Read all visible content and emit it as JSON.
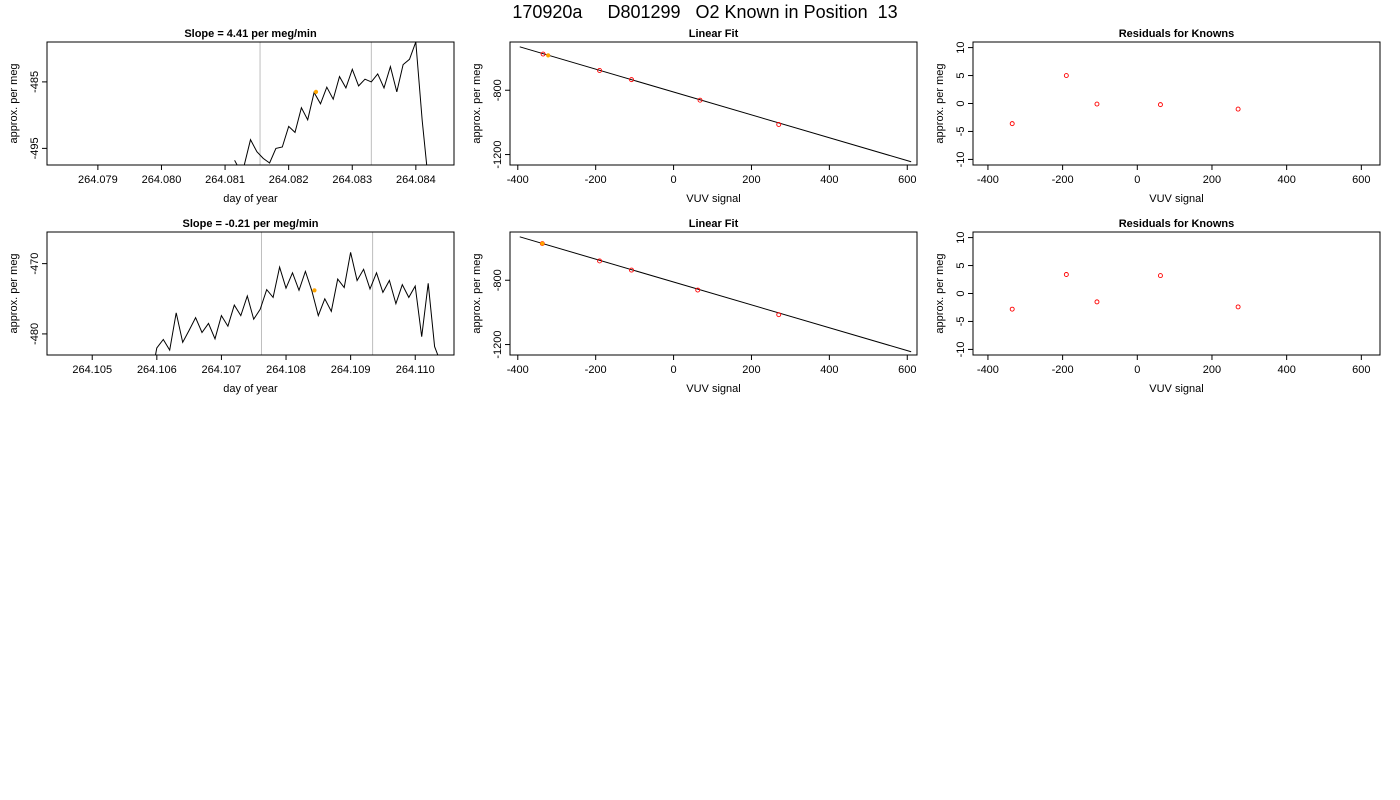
{
  "title": "170920a     D801299   O2 Known in Position  13",
  "colors": {
    "line": "#000000",
    "vline": "#bebebe",
    "point": "#ff0000",
    "highlight": "#ffa500"
  },
  "chart_data": [
    {
      "id": "row1-trace",
      "type": "line",
      "title": "Slope =  4.41  per meg/min",
      "xlabel": "day of year",
      "ylabel": "approx. per meg",
      "xlim": [
        264.0782,
        264.0846
      ],
      "ylim": [
        -497.5,
        -479
      ],
      "xticks": [
        264.079,
        264.08,
        264.081,
        264.082,
        264.083,
        264.084
      ],
      "xtick_labels": [
        "264.079",
        "264.080",
        "264.081",
        "264.082",
        "264.083",
        "264.084"
      ],
      "yticks": [
        -485,
        -495
      ],
      "ytick_labels": [
        "-485",
        "-495"
      ],
      "vlines": [
        264.08155,
        264.0833
      ],
      "highlight_point": [
        264.08243,
        -486.5
      ],
      "trace": [
        [
          264.08115,
          -496.8
        ],
        [
          264.0812,
          -497.7
        ],
        [
          264.0813,
          -497.6
        ],
        [
          264.0814,
          -493.7
        ],
        [
          264.0815,
          -495.5
        ],
        [
          264.0816,
          -496.5
        ],
        [
          264.0817,
          -497.2
        ],
        [
          264.0818,
          -495.0
        ],
        [
          264.0819,
          -494.8
        ],
        [
          264.082,
          -491.7
        ],
        [
          264.0821,
          -492.6
        ],
        [
          264.0822,
          -488.9
        ],
        [
          264.0823,
          -490.7
        ],
        [
          264.0824,
          -486.6
        ],
        [
          264.0825,
          -488.3
        ],
        [
          264.0826,
          -485.8
        ],
        [
          264.0827,
          -487.6
        ],
        [
          264.0828,
          -484.2
        ],
        [
          264.0829,
          -485.9
        ],
        [
          264.083,
          -483.1
        ],
        [
          264.0831,
          -485.6
        ],
        [
          264.0832,
          -484.6
        ],
        [
          264.0833,
          -485.0
        ],
        [
          264.0834,
          -483.8
        ],
        [
          264.0835,
          -485.9
        ],
        [
          264.0836,
          -482.7
        ],
        [
          264.0837,
          -486.5
        ],
        [
          264.0838,
          -482.4
        ],
        [
          264.0839,
          -481.6
        ],
        [
          264.084,
          -479.0
        ],
        [
          264.0841,
          -490.8
        ],
        [
          264.08417,
          -497.5
        ]
      ]
    },
    {
      "id": "row1-fit",
      "type": "scatter",
      "title": "Linear Fit",
      "xlabel": "VUV signal",
      "ylabel": "approx. per meg",
      "xlim": [
        -420,
        625
      ],
      "ylim": [
        -1265,
        -500
      ],
      "xticks": [
        -400,
        -200,
        0,
        200,
        400,
        600
      ],
      "xtick_labels": [
        "-400",
        "-200",
        "0",
        "200",
        "400",
        "600"
      ],
      "yticks": [
        -800,
        -1200
      ],
      "ytick_labels": [
        "-800",
        "-1200"
      ],
      "fit_line": [
        [
          -395,
          -530
        ],
        [
          610,
          -1245
        ]
      ],
      "points": [
        [
          -335,
          -575
        ],
        [
          -190,
          -677
        ],
        [
          -108,
          -734
        ],
        [
          68,
          -862
        ],
        [
          270,
          -1013
        ]
      ],
      "highlight_point": [
        -322,
        -583
      ]
    },
    {
      "id": "row1-residuals",
      "type": "scatter",
      "title": "Residuals for Knowns",
      "xlabel": "VUV signal",
      "ylabel": "approx. per meg",
      "xlim": [
        -440,
        650
      ],
      "ylim": [
        -11,
        11
      ],
      "xticks": [
        -400,
        -200,
        0,
        200,
        400,
        600
      ],
      "xtick_labels": [
        "-400",
        "-200",
        "0",
        "200",
        "400",
        "600"
      ],
      "yticks": [
        10,
        5,
        0,
        -5,
        -10
      ],
      "ytick_labels": [
        "10",
        "5",
        "0",
        "-5",
        "-10"
      ],
      "points": [
        [
          -335,
          -3.6
        ],
        [
          -190,
          5.0
        ],
        [
          -108,
          -0.1
        ],
        [
          62,
          -0.2
        ],
        [
          270,
          -1.0
        ]
      ]
    },
    {
      "id": "row2-trace",
      "type": "line",
      "title": "Slope =  -0.21  per meg/min",
      "xlabel": "day of year",
      "ylabel": "approx. per meg",
      "xlim": [
        264.1043,
        264.1106
      ],
      "ylim": [
        -483,
        -465.5
      ],
      "xticks": [
        264.105,
        264.106,
        264.107,
        264.108,
        264.109,
        264.11
      ],
      "xtick_labels": [
        "264.105",
        "264.106",
        "264.107",
        "264.108",
        "264.109",
        "264.110"
      ],
      "yticks": [
        -470,
        -480
      ],
      "ytick_labels": [
        "-470",
        "-480"
      ],
      "vlines": [
        264.10762,
        264.10934
      ],
      "highlight_point": [
        264.10844,
        -473.8
      ],
      "trace": [
        [
          264.10598,
          -483
        ],
        [
          264.106,
          -482.0
        ],
        [
          264.1061,
          -480.8
        ],
        [
          264.1062,
          -482.3
        ],
        [
          264.1063,
          -477.0
        ],
        [
          264.1064,
          -481.2
        ],
        [
          264.1065,
          -479.5
        ],
        [
          264.1066,
          -477.7
        ],
        [
          264.1067,
          -479.8
        ],
        [
          264.1068,
          -478.5
        ],
        [
          264.1069,
          -480.7
        ],
        [
          264.107,
          -477.4
        ],
        [
          264.1071,
          -478.9
        ],
        [
          264.1072,
          -475.9
        ],
        [
          264.1073,
          -477.4
        ],
        [
          264.1074,
          -474.6
        ],
        [
          264.1075,
          -477.9
        ],
        [
          264.1076,
          -476.5
        ],
        [
          264.1077,
          -473.7
        ],
        [
          264.1078,
          -474.8
        ],
        [
          264.1079,
          -470.5
        ],
        [
          264.108,
          -473.5
        ],
        [
          264.1081,
          -471.3
        ],
        [
          264.1082,
          -473.8
        ],
        [
          264.1083,
          -471.1
        ],
        [
          264.1084,
          -473.9
        ],
        [
          264.1085,
          -477.4
        ],
        [
          264.1086,
          -475.0
        ],
        [
          264.1087,
          -476.8
        ],
        [
          264.1088,
          -472.2
        ],
        [
          264.1089,
          -473.4
        ],
        [
          264.109,
          -468.4
        ],
        [
          264.1091,
          -472.4
        ],
        [
          264.1092,
          -470.8
        ],
        [
          264.1093,
          -473.6
        ],
        [
          264.1094,
          -471.3
        ],
        [
          264.1095,
          -474.1
        ],
        [
          264.1096,
          -472.4
        ],
        [
          264.1097,
          -475.7
        ],
        [
          264.1098,
          -473.0
        ],
        [
          264.1099,
          -474.8
        ],
        [
          264.11,
          -473.2
        ],
        [
          264.1101,
          -480.4
        ],
        [
          264.1102,
          -472.8
        ],
        [
          264.1103,
          -481.8
        ],
        [
          264.11035,
          -483
        ]
      ]
    },
    {
      "id": "row2-fit",
      "type": "scatter",
      "title": "Linear Fit",
      "xlabel": "VUV signal",
      "ylabel": "approx. per meg",
      "xlim": [
        -420,
        625
      ],
      "ylim": [
        -1265,
        -500
      ],
      "xticks": [
        -400,
        -200,
        0,
        200,
        400,
        600
      ],
      "xtick_labels": [
        "-400",
        "-200",
        "0",
        "200",
        "400",
        "600"
      ],
      "yticks": [
        -800,
        -1200
      ],
      "ytick_labels": [
        "-800",
        "-1200"
      ],
      "fit_line": [
        [
          -395,
          -530
        ],
        [
          610,
          -1245
        ]
      ],
      "points": [
        [
          -337,
          -572
        ],
        [
          -190,
          -680
        ],
        [
          -108,
          -737
        ],
        [
          62,
          -861
        ],
        [
          270,
          -1014
        ]
      ],
      "highlight_point": [
        -337,
        -572
      ]
    },
    {
      "id": "row2-residuals",
      "type": "scatter",
      "title": "Residuals for Knowns",
      "xlabel": "VUV signal",
      "ylabel": "approx. per meg",
      "xlim": [
        -440,
        650
      ],
      "ylim": [
        -11,
        11
      ],
      "xticks": [
        -400,
        -200,
        0,
        200,
        400,
        600
      ],
      "xtick_labels": [
        "-400",
        "-200",
        "0",
        "200",
        "400",
        "600"
      ],
      "yticks": [
        10,
        5,
        0,
        -5,
        -10
      ],
      "ytick_labels": [
        "10",
        "5",
        "0",
        "-5",
        "-10"
      ],
      "points": [
        [
          -335,
          -2.8
        ],
        [
          -190,
          3.4
        ],
        [
          -108,
          -1.5
        ],
        [
          62,
          3.2
        ],
        [
          270,
          -2.4
        ]
      ]
    }
  ]
}
